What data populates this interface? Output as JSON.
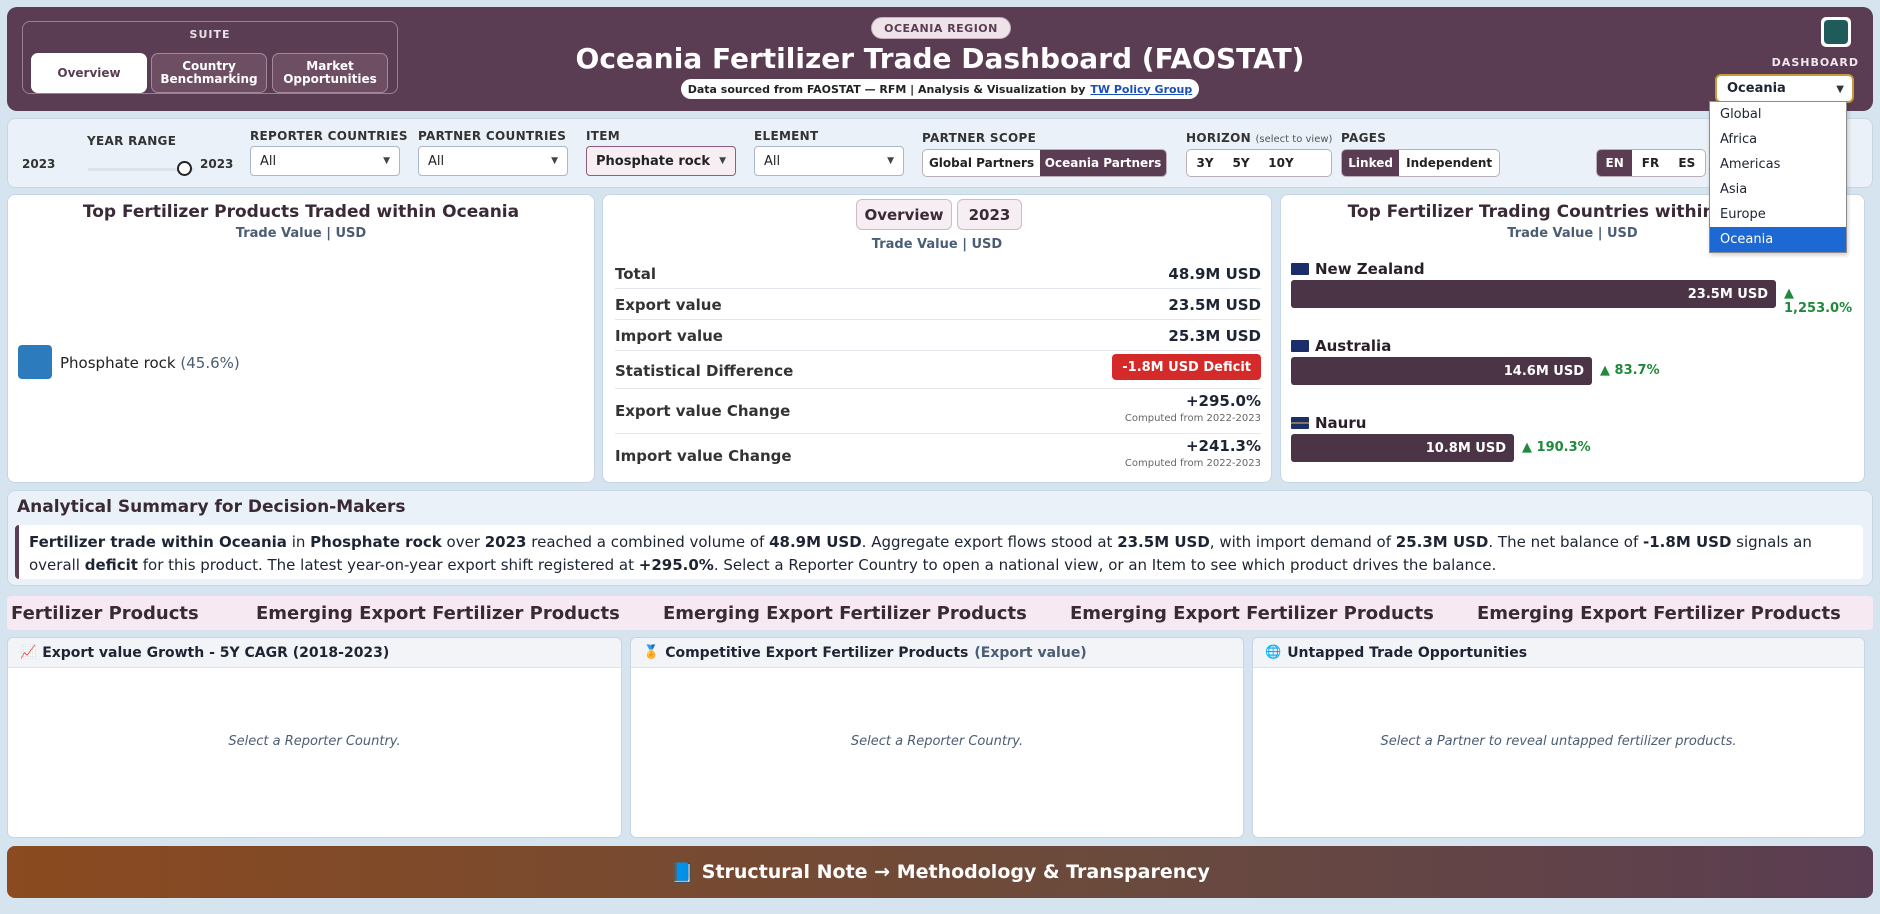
{
  "header": {
    "suite_label": "SUITE",
    "suite_tabs": [
      "Overview",
      "Country Benchmarking",
      "Market Opportunities"
    ],
    "region_pill": "OCEANIA REGION",
    "title": "Oceania Fertilizer Trade Dashboard (FAOSTAT)",
    "source_text": "Data sourced from FAOSTAT — RFM | Analysis & Visualization by",
    "source_link": "TW Policy Group",
    "dashboard_label": "DASHBOARD",
    "dashboard_value": "Oceania",
    "dashboard_options": [
      "Global",
      "Africa",
      "Americas",
      "Asia",
      "Europe",
      "Oceania"
    ]
  },
  "filters": {
    "year_range_label": "YEAR RANGE",
    "year_start": "2023",
    "year_end": "2023",
    "reporter_label": "REPORTER COUNTRIES",
    "reporter_value": "All",
    "partner_label": "PARTNER COUNTRIES",
    "partner_value": "All",
    "item_label": "ITEM",
    "item_value": "Phosphate rock",
    "element_label": "ELEMENT",
    "element_value": "All",
    "scope_label": "PARTNER SCOPE",
    "scope_options": [
      "Global Partners",
      "Oceania Partners"
    ],
    "horizon_label": "HORIZON",
    "horizon_hint": "(select to view)",
    "horizon_options": [
      "3Y",
      "5Y",
      "10Y"
    ],
    "pages_label": "PAGES",
    "pages_options": [
      "Linked",
      "Independent"
    ],
    "languages": [
      "EN",
      "FR",
      "ES"
    ]
  },
  "products_card": {
    "title": "Top Fertilizer Products Traded within Oceania",
    "subtitle": "Trade Value | USD",
    "legend_item": "Phosphate rock",
    "legend_pct": "(45.6%)",
    "legend_color": "#2b7bbd"
  },
  "overview_card": {
    "chips": [
      "Overview",
      "2023"
    ],
    "subtitle": "Trade Value | USD",
    "rows": {
      "total_label": "Total",
      "total_value": "48.9M USD",
      "export_label": "Export value",
      "export_value": "23.5M USD",
      "import_label": "Import value",
      "import_value": "25.3M USD",
      "diff_label": "Statistical Difference",
      "diff_value": "-1.8M USD Deficit",
      "exp_change_label": "Export value Change",
      "exp_change_value": "+295.0%",
      "exp_change_note": "Computed from 2022-2023",
      "imp_change_label": "Import value Change",
      "imp_change_value": "+241.3%",
      "imp_change_note": "Computed from 2022-2023"
    }
  },
  "countries_card": {
    "title": "Top Fertilizer Trading Countries within Oceania",
    "subtitle": "Trade Value | USD",
    "countries": [
      {
        "name": "New Zealand",
        "value": "23.5M USD",
        "value_num": 23.5,
        "growth": "▲ 1,253.0%"
      },
      {
        "name": "Australia",
        "value": "14.6M USD",
        "value_num": 14.6,
        "growth": "▲ 83.7%"
      },
      {
        "name": "Nauru",
        "value": "10.8M USD",
        "value_num": 10.8,
        "growth": "▲ 190.3%"
      }
    ]
  },
  "summary": {
    "title": "Analytical Summary for Decision-Makers",
    "p1_b": "Fertilizer trade within Oceania",
    "p1": " in ",
    "p2_b": "Phosphate rock",
    "p2": " over ",
    "p3_b": "2023",
    "p3": " reached a combined volume of ",
    "p4_b": "48.9M USD",
    "p4": ". Aggregate export flows stood at ",
    "p5_b": "23.5M USD",
    "p5": ", with import demand of ",
    "p6_b": "25.3M USD",
    "p6": ". The net balance of ",
    "p7_b": "-1.8M USD",
    "p7": " signals an overall ",
    "p8_b": "deficit",
    "p8": " for this product. The latest year-on-year export shift registered at ",
    "p9_b": "+295.0%",
    "p9": ". Select a Reporter Country to open a national view, or an Item to see which product drives the balance."
  },
  "ticker": [
    "Fertilizer Products",
    "Emerging Export Fertilizer Products",
    "Emerging Export Fertilizer Products",
    "Emerging Export Fertilizer Products",
    "Emerging Export Fertilizer Products"
  ],
  "panels": {
    "growth_title": "Export value Growth - 5Y CAGR (2018-2023)",
    "growth_empty": "Select a Reporter Country.",
    "competitive_title": "Competitive Export Fertilizer Products",
    "competitive_muted": "(Export value)",
    "competitive_empty": "Select a Reporter Country.",
    "untapped_title": "Untapped Trade Opportunities",
    "untapped_empty": "Select a Partner to reveal untapped fertilizer products."
  },
  "footer": {
    "label": "Structural Note → Methodology & Transparency"
  }
}
